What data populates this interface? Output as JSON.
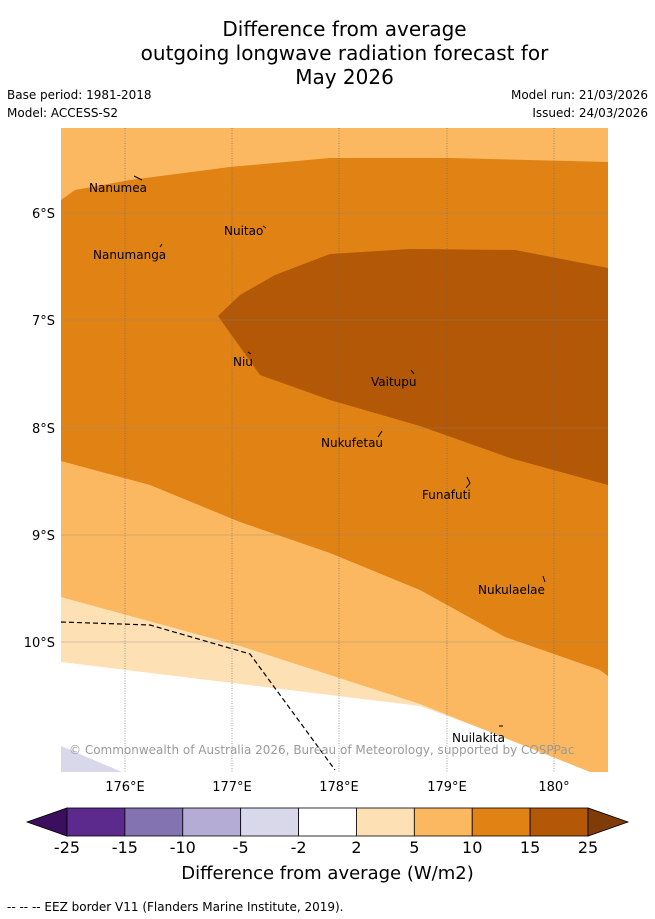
{
  "title": {
    "line1": "Difference from average",
    "line2": "outgoing longwave radiation forecast for",
    "line3": "May 2026"
  },
  "meta": {
    "base_period": "Base period: 1981-2018",
    "model": "Model: ACCESS-S2",
    "model_run": "Model run: 21/03/2026",
    "issued": "Issued: 24/03/2026"
  },
  "map": {
    "lat_labels": [
      "6°S",
      "7°S",
      "8°S",
      "9°S",
      "10°S"
    ],
    "lon_labels": [
      "176°E",
      "177°E",
      "178°E",
      "179°E",
      "180°"
    ],
    "places": [
      {
        "name": "Nanumea"
      },
      {
        "name": "Nuitao"
      },
      {
        "name": "Nanumanga"
      },
      {
        "name": "Niu"
      },
      {
        "name": "Vaitupu"
      },
      {
        "name": "Nukufetau"
      },
      {
        "name": "Funafuti"
      },
      {
        "name": "Nukulaelae"
      },
      {
        "name": "Nuilakita"
      }
    ],
    "copyright": "© Commonwealth of Australia 2026, Bureau of Meteorology, supported by COSPPac"
  },
  "colorbar": {
    "ticks": [
      "-25",
      "-15",
      "-10",
      "-5",
      "-2",
      "2",
      "5",
      "10",
      "15",
      "25"
    ],
    "colors": [
      "#5b2a8c",
      "#8373b0",
      "#b4acd4",
      "#d8d8ea",
      "#ffffff",
      "#fde0b4",
      "#fbb860",
      "#e08214",
      "#b35806"
    ],
    "under_color": "#3b0e5e",
    "over_color": "#7f3b08",
    "label": "Difference from average (W/m2)"
  },
  "legend": {
    "eez": "--  --  -- EEZ border V11 (Flanders Marine Institute, 2019)."
  }
}
